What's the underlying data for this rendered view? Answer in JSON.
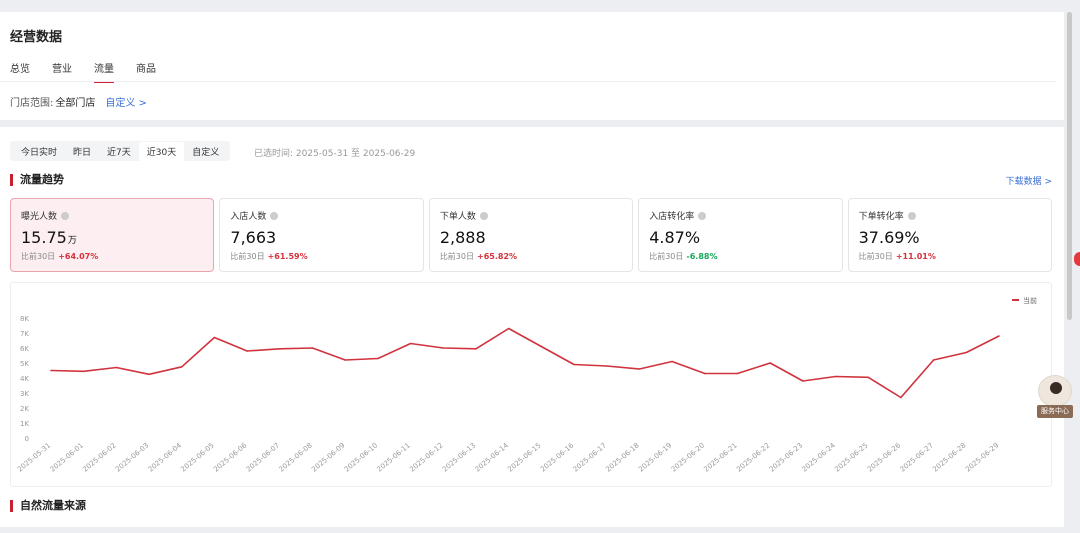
{
  "page": {
    "title": "经营数据"
  },
  "tabs": [
    {
      "label": "总览",
      "active": false
    },
    {
      "label": "营业",
      "active": false
    },
    {
      "label": "流量",
      "active": true
    },
    {
      "label": "商品",
      "active": false
    }
  ],
  "store": {
    "label": "门店范围:",
    "value": "全部门店",
    "custom_link": "自定义 >"
  },
  "range": {
    "buttons": [
      "今日实时",
      "昨日",
      "近7天",
      "近30天",
      "自定义"
    ],
    "active": "近30天",
    "selected_time": "已选时间: 2025-05-31 至 2025-06-29"
  },
  "sections": {
    "trend": "流量趋势",
    "download": "下载数据 >",
    "natural": "自然流量来源"
  },
  "metrics": [
    {
      "label": "曝光人数",
      "value": "15.75",
      "unit": "万",
      "cmp_label": "比前30日",
      "delta": "+64.07%",
      "dir": "up",
      "active": true
    },
    {
      "label": "入店人数",
      "value": "7,663",
      "unit": "",
      "cmp_label": "比前30日",
      "delta": "+61.59%",
      "dir": "up",
      "active": false
    },
    {
      "label": "下单人数",
      "value": "2,888",
      "unit": "",
      "cmp_label": "比前30日",
      "delta": "+65.82%",
      "dir": "up",
      "active": false
    },
    {
      "label": "入店转化率",
      "value": "4.87%",
      "unit": "",
      "cmp_label": "比前30日",
      "delta": "-6.88%",
      "dir": "down",
      "active": false
    },
    {
      "label": "下单转化率",
      "value": "37.69%",
      "unit": "",
      "cmp_label": "比前30日",
      "delta": "+11.01%",
      "dir": "up",
      "active": false
    }
  ],
  "chart_data": {
    "type": "line",
    "title": "",
    "legend": [
      "当前"
    ],
    "legend_position": "top-right",
    "color": "#d0333d",
    "y_ticks": [
      "0",
      "1K",
      "2K",
      "3K",
      "4K",
      "5K",
      "6K",
      "7K",
      "8K"
    ],
    "ylim": [
      0,
      8000
    ],
    "x": [
      "2025-05-31",
      "2025-06-01",
      "2025-06-02",
      "2025-06-03",
      "2025-06-04",
      "2025-06-05",
      "2025-06-06",
      "2025-06-07",
      "2025-06-08",
      "2025-06-09",
      "2025-06-10",
      "2025-06-11",
      "2025-06-12",
      "2025-06-13",
      "2025-06-14",
      "2025-06-15",
      "2025-06-16",
      "2025-06-17",
      "2025-06-18",
      "2025-06-19",
      "2025-06-20",
      "2025-06-21",
      "2025-06-22",
      "2025-06-23",
      "2025-06-24",
      "2025-06-25",
      "2025-06-26",
      "2025-06-27",
      "2025-06-28",
      "2025-06-29"
    ],
    "series": [
      {
        "name": "当前",
        "values": [
          4500,
          4450,
          4700,
          4250,
          4750,
          6700,
          5800,
          5950,
          6000,
          5200,
          5300,
          6300,
          6000,
          5950,
          7300,
          6100,
          4900,
          4800,
          4600,
          5100,
          4300,
          4300,
          5000,
          3800,
          4100,
          4050,
          2700,
          5200,
          5700,
          6800
        ]
      }
    ]
  },
  "service": {
    "label": "服务中心"
  },
  "colors": {
    "accent": "#c8202e",
    "link": "#3a6fd8",
    "up": "#d6313c",
    "down": "#16a85b"
  }
}
